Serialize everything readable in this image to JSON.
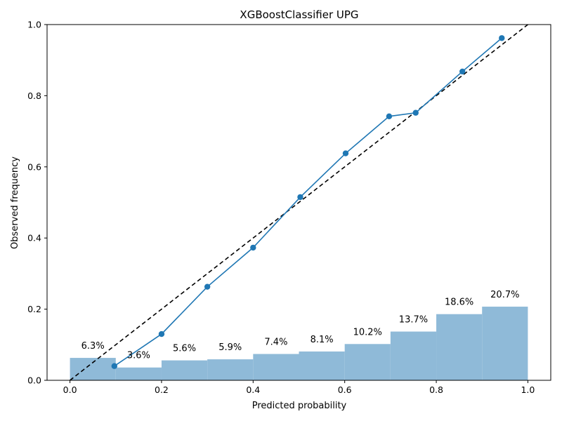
{
  "chart_data": {
    "type": "line",
    "title": "XGBoostClassifier UPG",
    "xlabel": "Predicted probability",
    "ylabel": "Observed frequency",
    "xlim": [
      -0.05,
      1.05
    ],
    "ylim": [
      0.0,
      1.0
    ],
    "xticks": [
      "0.0",
      "0.2",
      "0.4",
      "0.6",
      "0.8",
      "1.0"
    ],
    "yticks": [
      "0.0",
      "0.2",
      "0.4",
      "0.6",
      "0.8",
      "1.0"
    ],
    "grid": false,
    "colors": {
      "calibration_line": "#1f77b4",
      "reference_line": "#000000",
      "histogram": "#8fbad8"
    },
    "reference_line": {
      "style": "dashed",
      "x": [
        0,
        1
      ],
      "y": [
        0,
        1
      ]
    },
    "calibration_curve": {
      "x": [
        0.097,
        0.2,
        0.3,
        0.4,
        0.503,
        0.602,
        0.697,
        0.755,
        0.857,
        0.943
      ],
      "y": [
        0.04,
        0.13,
        0.263,
        0.373,
        0.515,
        0.638,
        0.742,
        0.752,
        0.868,
        0.962
      ]
    },
    "histogram": {
      "bin_edges": [
        0.0,
        0.1,
        0.2,
        0.3,
        0.4,
        0.5,
        0.6,
        0.7,
        0.8,
        0.9,
        1.0
      ],
      "heights": [
        0.063,
        0.036,
        0.056,
        0.059,
        0.074,
        0.081,
        0.102,
        0.137,
        0.186,
        0.207
      ],
      "labels": [
        "6.3%",
        "3.6%",
        "5.6%",
        "5.9%",
        "7.4%",
        "8.1%",
        "10.2%",
        "13.7%",
        "18.6%",
        "20.7%"
      ]
    }
  }
}
